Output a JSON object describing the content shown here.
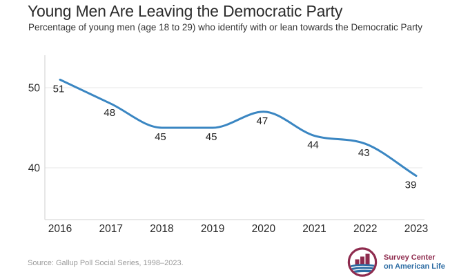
{
  "header": {
    "title": "Young Men Are Leaving the Democratic Party",
    "subtitle": "Percentage of young men (age 18 to 29) who identify with or lean towards the Democratic Party"
  },
  "chart_data": {
    "type": "line",
    "title": "Young Men Are Leaving the Democratic Party",
    "subtitle": "Percentage of young men (age 18 to 29) who identify with or lean towards the Democratic Party",
    "categories": [
      "2016",
      "2017",
      "2018",
      "2019",
      "2020",
      "2021",
      "2022",
      "2023"
    ],
    "values": [
      51,
      48,
      45,
      45,
      47,
      44,
      43,
      39
    ],
    "data_labels": [
      "51",
      "48",
      "45",
      "45",
      "47",
      "44",
      "43",
      "39"
    ],
    "xlabel": "",
    "ylabel": "",
    "yticks": [
      50,
      40
    ],
    "ylim": [
      33.5,
      54
    ],
    "grid": "horizontal",
    "legend": "none",
    "colors": {
      "line": "#3a86c2",
      "grid": "#ececec",
      "axis": "#d9d9d9",
      "tick_text": "#2b2b2b",
      "data_label_text": "#222222"
    }
  },
  "footer": {
    "source": "Source: Gallup Poll Social Series, 1998–2023.",
    "logo": {
      "line1": "Survey Center",
      "line2": "on American Life",
      "maroon": "#8e2b4e",
      "blue": "#2d6ca3"
    }
  }
}
